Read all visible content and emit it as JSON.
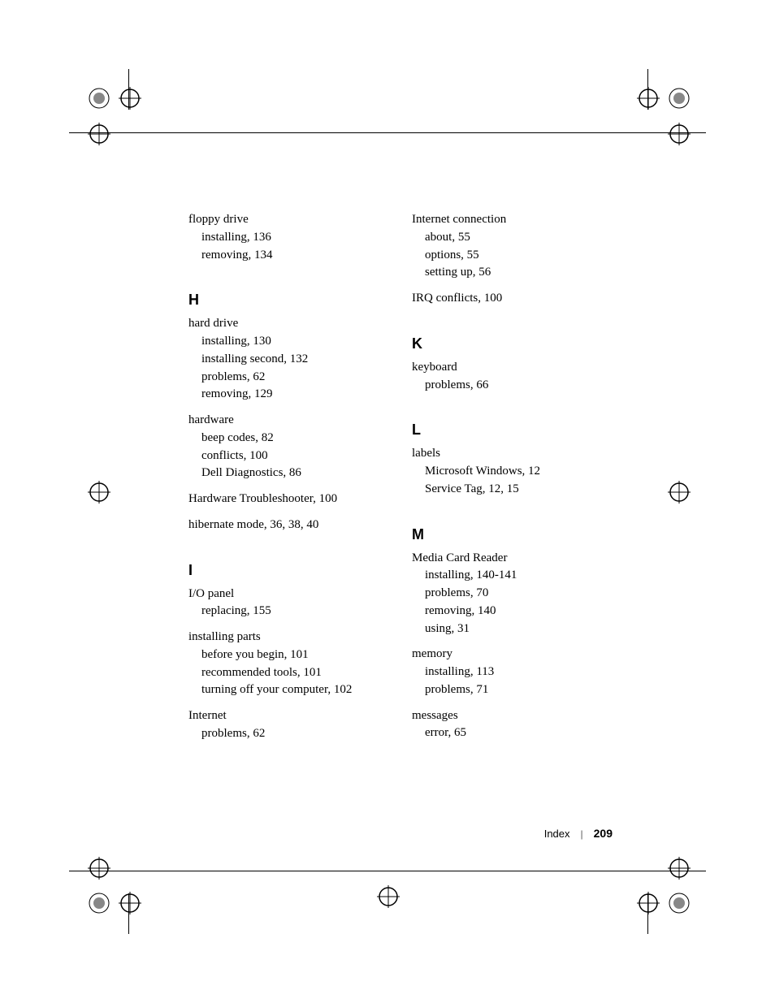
{
  "left_column": [
    {
      "term": "floppy drive",
      "subs": [
        "installing, 136",
        "removing, 134"
      ]
    }
  ],
  "sections_left": [
    {
      "letter": "H",
      "entries": [
        {
          "term": "hard drive",
          "subs": [
            "installing, 130",
            "installing second, 132",
            "problems, 62",
            "removing, 129"
          ]
        },
        {
          "term": "hardware",
          "subs": [
            "beep codes, 82",
            "conflicts, 100",
            "Dell Diagnostics, 86"
          ]
        },
        {
          "term": "Hardware Troubleshooter, 100",
          "subs": []
        },
        {
          "term": "hibernate mode, 36, 38, 40",
          "subs": []
        }
      ]
    },
    {
      "letter": "I",
      "entries": [
        {
          "term": "I/O panel",
          "subs": [
            "replacing, 155"
          ]
        },
        {
          "term": "installing parts",
          "subs": [
            "before you begin, 101",
            "recommended tools, 101",
            "turning off your computer, 102"
          ]
        },
        {
          "term": "Internet",
          "subs": [
            "problems, 62"
          ]
        }
      ]
    }
  ],
  "right_top": [
    {
      "term": "Internet connection",
      "subs": [
        "about, 55",
        "options, 55",
        "setting up, 56"
      ]
    },
    {
      "term": "IRQ conflicts, 100",
      "subs": []
    }
  ],
  "sections_right": [
    {
      "letter": "K",
      "entries": [
        {
          "term": "keyboard",
          "subs": [
            "problems, 66"
          ]
        }
      ]
    },
    {
      "letter": "L",
      "entries": [
        {
          "term": "labels",
          "subs": [
            "Microsoft Windows, 12",
            "Service Tag, 12, 15"
          ]
        }
      ]
    },
    {
      "letter": "M",
      "entries": [
        {
          "term": "Media Card Reader",
          "subs": [
            "installing, 140-141",
            "problems, 70",
            "removing, 140",
            "using, 31"
          ]
        },
        {
          "term": "memory",
          "subs": [
            "installing, 113",
            "problems, 71"
          ]
        },
        {
          "term": "messages",
          "subs": [
            "error, 65"
          ]
        }
      ]
    }
  ],
  "footer": {
    "label": "Index",
    "page": "209"
  },
  "style": {
    "body_font": "Georgia",
    "letter_font": "Arial",
    "text_color": "#000000",
    "bg_color": "#ffffff",
    "entry_fontsize": 15,
    "letter_fontsize": 18
  }
}
